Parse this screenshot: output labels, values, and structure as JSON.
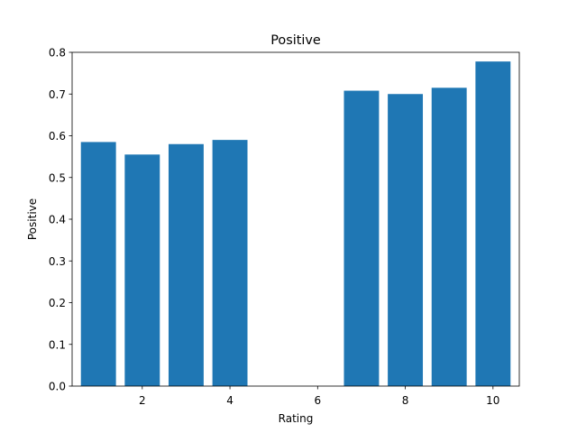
{
  "chart_data": {
    "type": "bar",
    "title": "Positive",
    "xlabel": "Rating",
    "ylabel": "Positive",
    "x": [
      1,
      2,
      3,
      4,
      7,
      8,
      9,
      10
    ],
    "values": [
      0.585,
      0.555,
      0.58,
      0.59,
      0.708,
      0.7,
      0.715,
      0.778
    ],
    "xlim": [
      0.4,
      10.6
    ],
    "ylim": [
      0,
      0.8
    ],
    "xticks": [
      2,
      4,
      6,
      8,
      10
    ],
    "yticks": [
      0.0,
      0.1,
      0.2,
      0.3,
      0.4,
      0.5,
      0.6,
      0.7,
      0.8
    ],
    "xtick_labels": [
      "2",
      "4",
      "6",
      "8",
      "10"
    ],
    "ytick_labels": [
      "0.0",
      "0.1",
      "0.2",
      "0.3",
      "0.4",
      "0.5",
      "0.6",
      "0.7",
      "0.8"
    ],
    "bar_color": "#1f77b4",
    "grid": false,
    "legend": "none"
  }
}
